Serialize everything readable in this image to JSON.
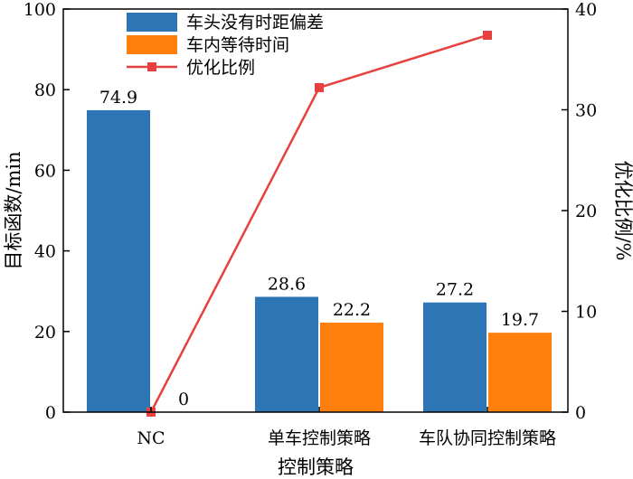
{
  "chart_data": {
    "type": "bar",
    "xlabel": "控制策略",
    "ylabel": "目标函数/min",
    "y2label": "优化比例/%",
    "categories": [
      "NC",
      "单车控制策略",
      "车队协同控制策略"
    ],
    "ylim": [
      0,
      100
    ],
    "y2lim": [
      0,
      40
    ],
    "yticks": [
      "0",
      "20",
      "40",
      "60",
      "80",
      "100"
    ],
    "y2ticks": [
      "0",
      "10",
      "20",
      "30",
      "40"
    ],
    "grid": false,
    "legend_position": "top-center",
    "series": [
      {
        "name": "车头没有时距偏差",
        "kind": "bar",
        "axis": "left",
        "color": "#2E75B6",
        "values": [
          74.9,
          28.6,
          27.2
        ],
        "labels": [
          "74.9",
          "28.6",
          "27.2"
        ]
      },
      {
        "name": "车内等待时间",
        "kind": "bar",
        "axis": "left",
        "color": "#FF7F0E",
        "values": [
          0,
          22.2,
          19.7
        ],
        "labels": [
          "0",
          "22.2",
          "19.7"
        ]
      },
      {
        "name": "优化比例",
        "kind": "line",
        "axis": "right",
        "color": "#E8403F",
        "marker": "square",
        "values": [
          0,
          32.2,
          37.4
        ]
      }
    ]
  }
}
